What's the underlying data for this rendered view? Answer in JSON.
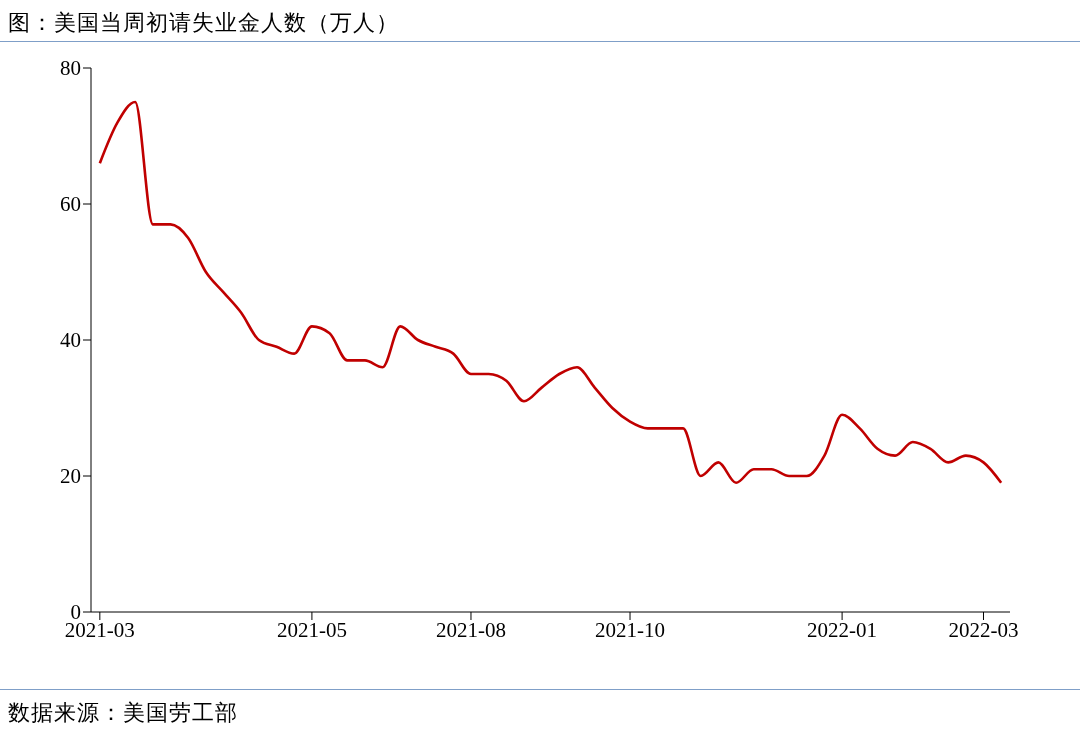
{
  "chart_data": {
    "type": "line",
    "title": "图：美国当周初请失业金人数（万人）",
    "annotations": [
      "数据来源：美国劳工部"
    ],
    "categories": [
      "2021-03",
      null,
      null,
      null,
      null,
      null,
      null,
      null,
      null,
      null,
      null,
      null,
      "2021-05",
      null,
      null,
      null,
      null,
      null,
      null,
      null,
      null,
      "2021-08",
      null,
      null,
      null,
      null,
      null,
      null,
      null,
      null,
      "2021-10",
      null,
      null,
      null,
      null,
      null,
      null,
      null,
      null,
      null,
      null,
      null,
      "2022-01",
      null,
      null,
      null,
      null,
      null,
      null,
      null,
      "2022-03",
      null
    ],
    "series": [
      {
        "color": "#c00000",
        "values": [
          66,
          72,
          75,
          57,
          57,
          55,
          50,
          47,
          44,
          40,
          39,
          38,
          42,
          41,
          37,
          37,
          36,
          42,
          40,
          39,
          38,
          35,
          35,
          34,
          31,
          33,
          35,
          36,
          33,
          30,
          28,
          27,
          27,
          27,
          20,
          22,
          19,
          21,
          21,
          20,
          20,
          23,
          29,
          27,
          24,
          23,
          25,
          24,
          22,
          23,
          22,
          19
        ]
      }
    ],
    "ylim": [
      0,
      80
    ],
    "yticks": [
      0,
      20,
      40,
      60,
      80
    ],
    "grid": false,
    "legend": false,
    "line_style": "solid",
    "marker": "none"
  }
}
